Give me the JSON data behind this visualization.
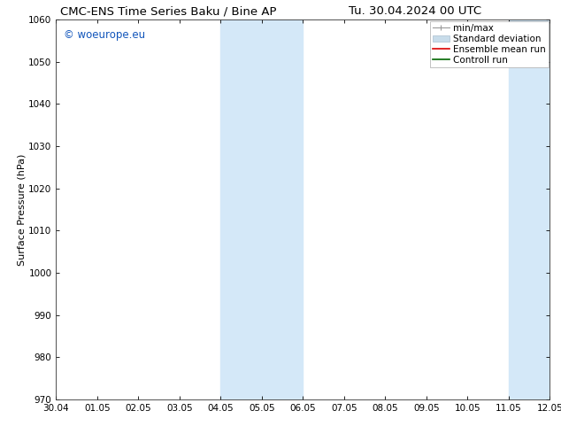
{
  "title_left": "CMC-ENS Time Series Baku / Bine AP",
  "title_right": "Tu. 30.04.2024 00 UTC",
  "ylabel": "Surface Pressure (hPa)",
  "ylim": [
    970,
    1060
  ],
  "yticks": [
    970,
    980,
    990,
    1000,
    1010,
    1020,
    1030,
    1040,
    1050,
    1060
  ],
  "xtick_labels": [
    "30.04",
    "01.05",
    "02.05",
    "03.05",
    "04.05",
    "05.05",
    "06.05",
    "07.05",
    "08.05",
    "09.05",
    "10.05",
    "11.05",
    "12.05"
  ],
  "xtick_positions": [
    0,
    1,
    2,
    3,
    4,
    5,
    6,
    7,
    8,
    9,
    10,
    11,
    12
  ],
  "shaded_regions": [
    {
      "x_start": 4,
      "x_end": 6,
      "color": "#d4e8f8"
    },
    {
      "x_start": 11,
      "x_end": 12,
      "color": "#d4e8f8"
    }
  ],
  "watermark_text": "© woeurope.eu",
  "watermark_color": "#1155bb",
  "legend_labels": [
    "min/max",
    "Standard deviation",
    "Ensemble mean run",
    "Controll run"
  ],
  "background_color": "#ffffff",
  "title_fontsize": 9.5,
  "label_fontsize": 8,
  "tick_fontsize": 7.5,
  "legend_fontsize": 7.5,
  "watermark_fontsize": 8.5
}
